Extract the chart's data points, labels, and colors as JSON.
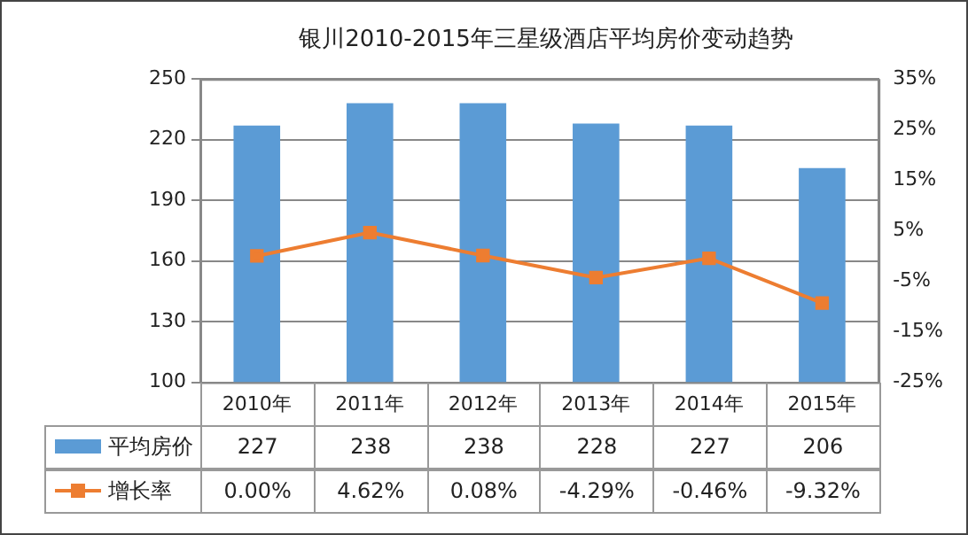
{
  "chart_data": {
    "type": "bar",
    "title": "银川2010-2015年三星级酒店平均房价变动趋势",
    "categories": [
      "2010年",
      "2011年",
      "2012年",
      "2013年",
      "2014年",
      "2015年"
    ],
    "series": [
      {
        "name": "平均房价",
        "color": "#5b9bd5",
        "values": [
          227,
          238,
          238,
          228,
          227,
          206
        ],
        "value_labels": [
          "227",
          "238",
          "238",
          "228",
          "227",
          "206"
        ]
      },
      {
        "name": "增长率",
        "type": "line",
        "axis": "y2",
        "color": "#ed7d31",
        "values": [
          0.0,
          4.62,
          0.08,
          -4.29,
          -0.46,
          -9.32
        ],
        "value_labels": [
          "0.00%",
          "4.62%",
          "0.08%",
          "-4.29%",
          "-0.46%",
          "-9.32%"
        ]
      }
    ],
    "ylim": [
      100,
      250
    ],
    "yticks": [
      100,
      130,
      160,
      190,
      220,
      250
    ],
    "y2lim": [
      -25,
      35
    ],
    "y2ticks": [
      {
        "value": -25,
        "label": "-25%"
      },
      {
        "value": -15,
        "label": "-15%"
      },
      {
        "value": -5,
        "label": "-5%"
      },
      {
        "value": 5,
        "label": "5%"
      },
      {
        "value": 15,
        "label": "15%"
      },
      {
        "value": 25,
        "label": "25%"
      },
      {
        "value": 35,
        "label": "35%"
      }
    ],
    "grid": "y",
    "legend": "bottom",
    "marker": "square"
  }
}
